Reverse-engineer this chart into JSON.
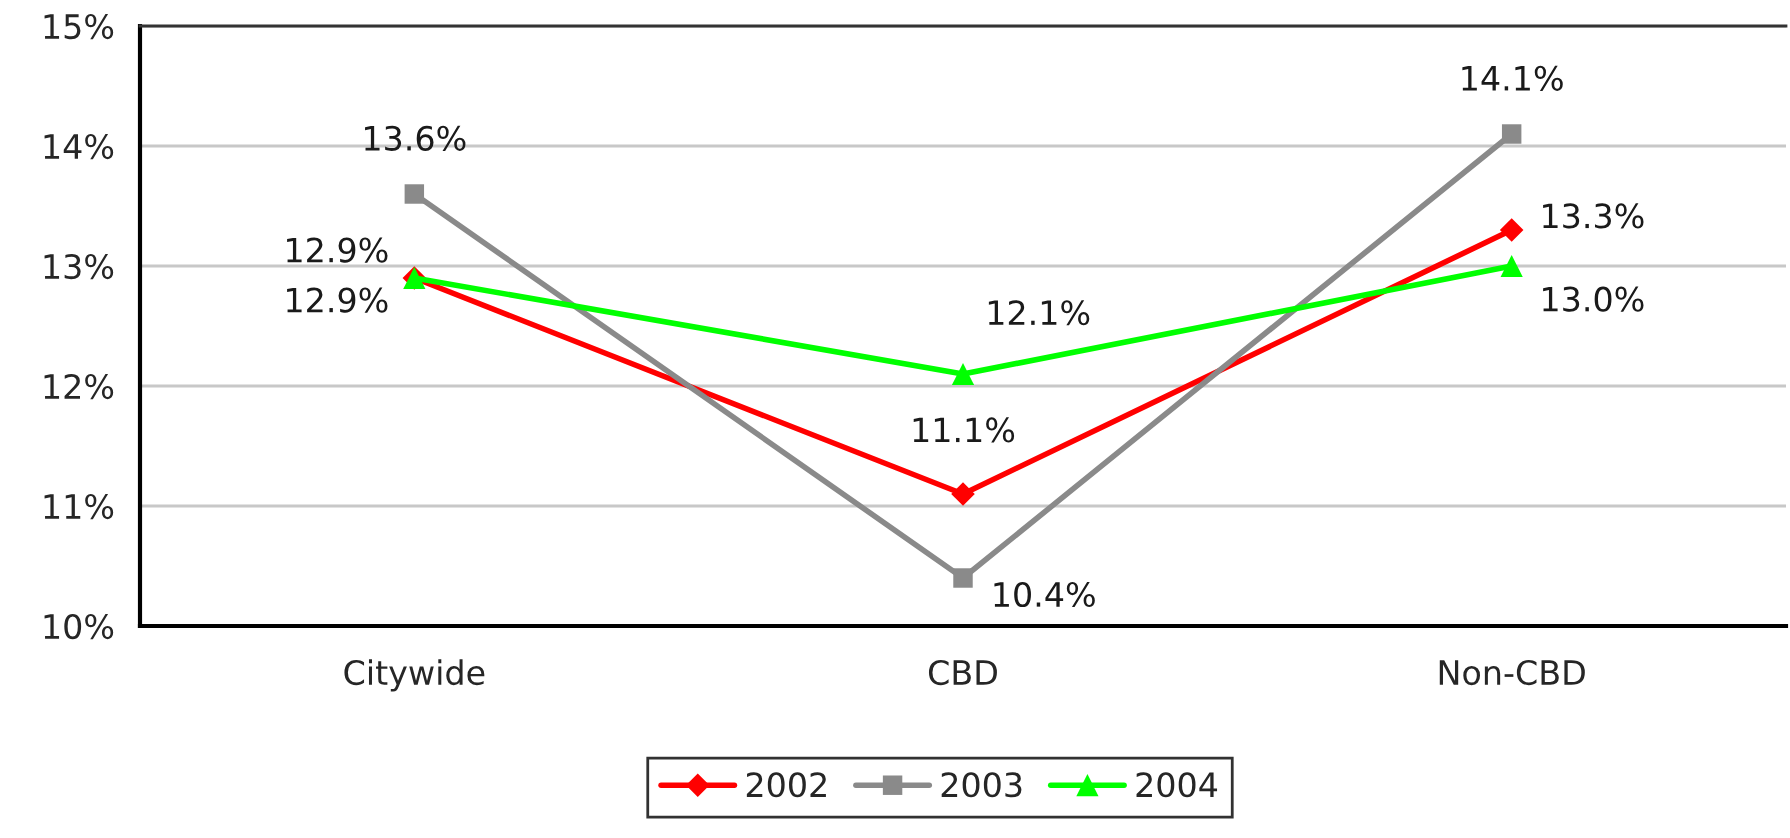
{
  "chart_data": {
    "type": "line",
    "categories": [
      "Citywide",
      "CBD",
      "Non-CBD"
    ],
    "series": [
      {
        "name": "2002",
        "color": "#ff0000",
        "marker": "diamond",
        "values": [
          12.9,
          11.1,
          13.3
        ],
        "value_labels": [
          "12.9%",
          "11.1%",
          "13.3%"
        ]
      },
      {
        "name": "2003",
        "color": "#8a8a8a",
        "marker": "square",
        "values": [
          13.6,
          10.4,
          14.1
        ],
        "value_labels": [
          "13.6%",
          "10.4%",
          "14.1%"
        ]
      },
      {
        "name": "2004",
        "color": "#00ff00",
        "marker": "triangle",
        "values": [
          12.9,
          12.1,
          13.0
        ],
        "value_labels": [
          "12.9%",
          "12.1%",
          "13.0%"
        ]
      }
    ],
    "ylim": [
      10,
      15
    ],
    "yticks": [
      {
        "value": 10,
        "label": "10%"
      },
      {
        "value": 11,
        "label": "11%"
      },
      {
        "value": 12,
        "label": "12%"
      },
      {
        "value": 13,
        "label": "13%"
      },
      {
        "value": 14,
        "label": "14%"
      },
      {
        "value": 15,
        "label": "15%"
      }
    ],
    "grid": "y",
    "legend": "bottom"
  }
}
